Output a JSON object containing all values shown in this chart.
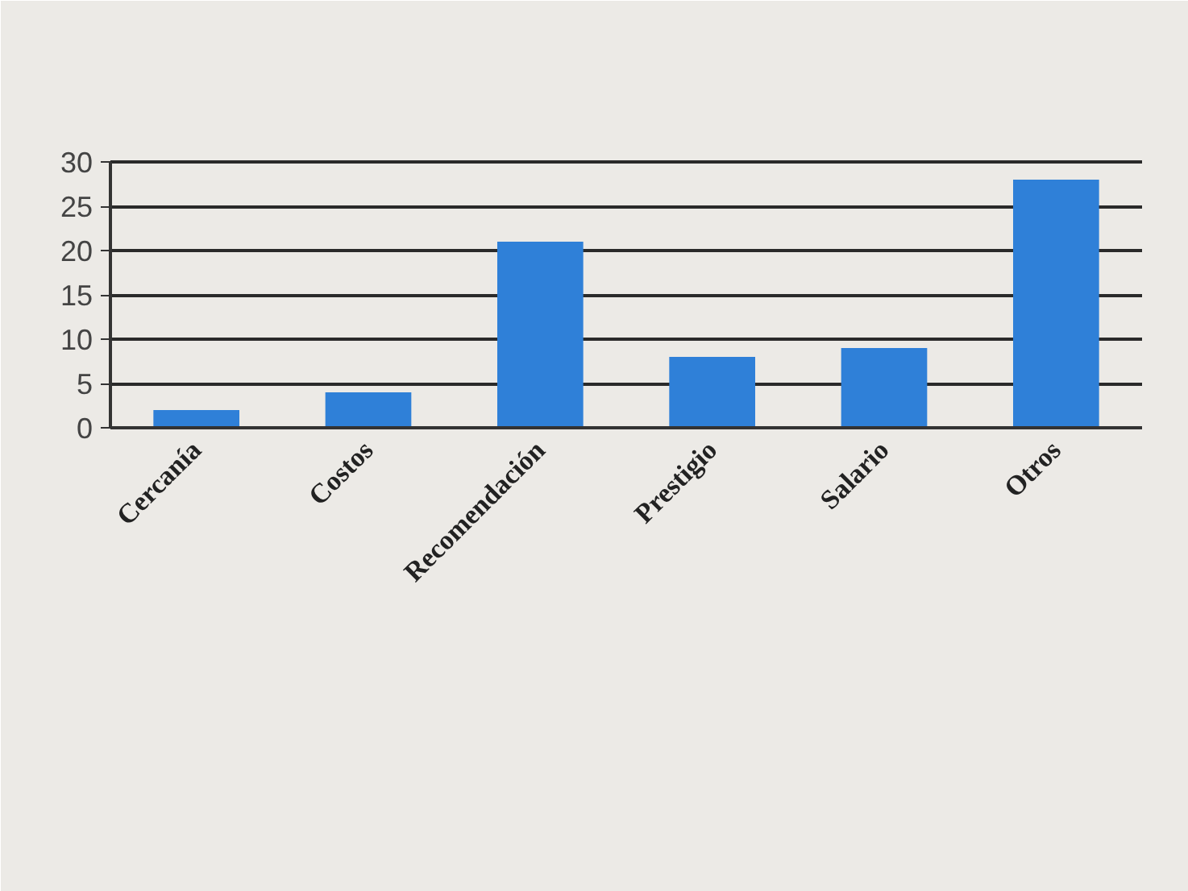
{
  "chart_data": {
    "type": "bar",
    "categories": [
      "Cercanía",
      "Costos",
      "Recomendación",
      "Prestigio",
      "Salario",
      "Otros"
    ],
    "values": [
      2,
      4,
      21,
      8,
      9,
      28
    ],
    "color": "#2f80d8",
    "ylim": [
      0,
      30
    ],
    "yticks": [
      0,
      5,
      10,
      15,
      20,
      25,
      30
    ],
    "grid": "y"
  }
}
